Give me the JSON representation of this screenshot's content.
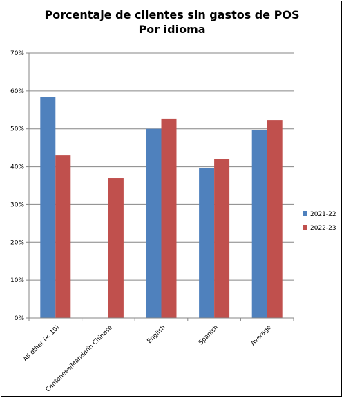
{
  "chart_data": {
    "type": "bar",
    "title_line1": "Porcentaje de clientes sin gastos de POS",
    "title_line2": "Por idioma",
    "xlabel": "",
    "ylabel": "",
    "categories": [
      "All other (< 10)",
      "Cantonese/Mandarin Chinese",
      "English",
      "Spanish",
      "Average"
    ],
    "series": [
      {
        "name": "2021-22",
        "color": "#4F81BD",
        "values": [
          58.5,
          null,
          50.0,
          39.7,
          49.6
        ]
      },
      {
        "name": "2022-23",
        "color": "#C0504D",
        "values": [
          43.0,
          37.0,
          52.7,
          42.1,
          52.3
        ]
      }
    ],
    "ylim": [
      0,
      70
    ],
    "yticks": [
      0,
      10,
      20,
      30,
      40,
      50,
      60,
      70
    ],
    "ytick_labels": [
      "0%",
      "10%",
      "20%",
      "30%",
      "40%",
      "50%",
      "60%",
      "70%"
    ],
    "grid": true,
    "legend_position": "right"
  }
}
